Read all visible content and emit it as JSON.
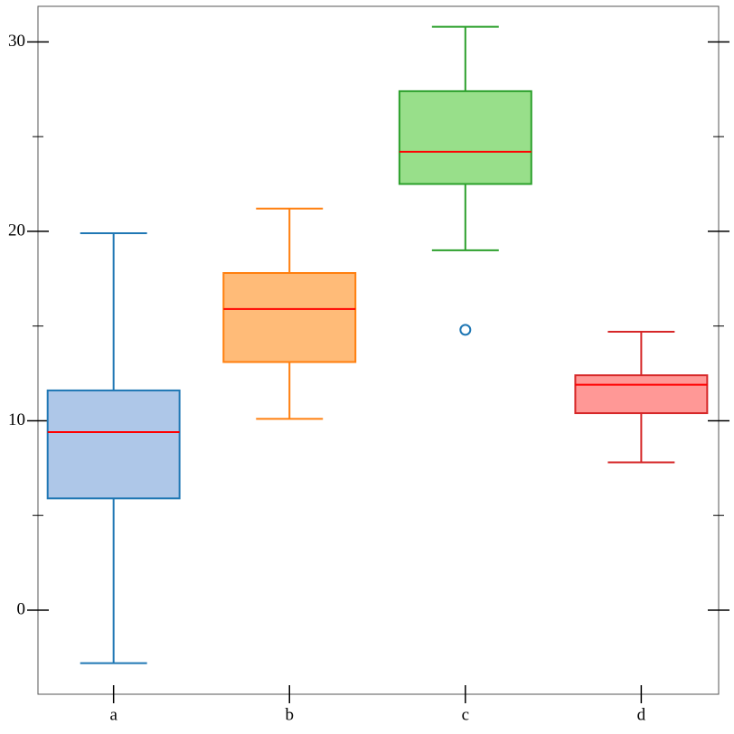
{
  "chart_data": {
    "type": "box",
    "categories": [
      "a",
      "b",
      "c",
      "d"
    ],
    "boxes": [
      {
        "whislo": -2.8,
        "q1": 5.9,
        "med": 9.4,
        "q3": 11.6,
        "whishi": 19.9,
        "fliers": []
      },
      {
        "whislo": 10.1,
        "q1": 13.1,
        "med": 15.9,
        "q3": 17.8,
        "whishi": 21.2,
        "fliers": []
      },
      {
        "whislo": 19.0,
        "q1": 22.5,
        "med": 24.2,
        "q3": 27.4,
        "whishi": 30.8,
        "fliers": [
          14.8
        ]
      },
      {
        "whislo": 7.8,
        "q1": 10.4,
        "med": 11.9,
        "q3": 12.4,
        "whishi": 14.7,
        "fliers": []
      }
    ],
    "colors": [
      "#1f77b4",
      "#ff7f0e",
      "#2ca02c",
      "#d62728"
    ],
    "fill_colors": [
      "#aec7e8",
      "#ffbb78",
      "#98df8a",
      "#ff9896"
    ],
    "median_color": "#ff0000",
    "flier_color": "#1f77b4",
    "xlim": [
      -0.43,
      3.44
    ],
    "ylim": [
      -4.44,
      31.88
    ],
    "yticks": [
      0,
      10,
      20,
      30
    ],
    "minor_yticks": [
      5,
      15,
      25
    ]
  }
}
